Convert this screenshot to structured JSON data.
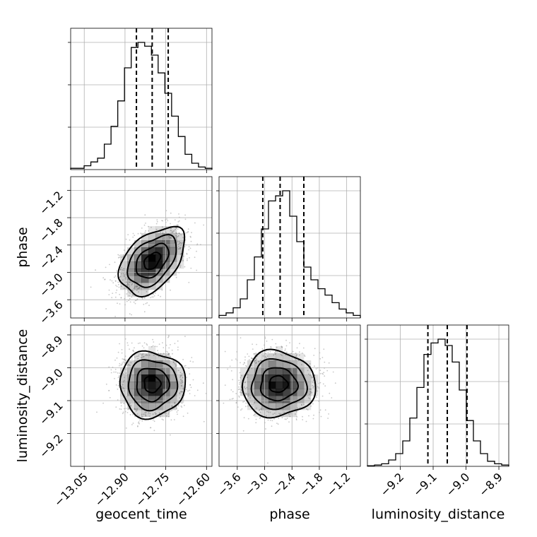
{
  "chart_data": {
    "type": "corner",
    "parameters": [
      {
        "name": "geocent_time",
        "xlabel": "geocent_time",
        "range": [
          -13.1,
          -12.58
        ],
        "ticks": [
          -13.05,
          -12.9,
          -12.75,
          -12.6
        ],
        "tick_labels": [
          "−13.05",
          "−12.90",
          "−12.75",
          "−12.60"
        ],
        "quantiles": [
          -12.858,
          -12.8,
          -12.741
        ],
        "hist_bins": [
          0.01,
          0.01,
          0.03,
          0.06,
          0.09,
          0.2,
          0.34,
          0.54,
          0.8,
          0.96,
          1.0,
          0.97,
          0.9,
          0.76,
          0.6,
          0.42,
          0.26,
          0.12,
          0.05,
          0.02,
          0.01
        ]
      },
      {
        "name": "phase",
        "xlabel": "phase",
        "ylabel": "phase",
        "range": [
          -4.0,
          -0.9
        ],
        "ticks": [
          -3.6,
          -3.0,
          -2.4,
          -1.8,
          -1.2
        ],
        "tick_labels": [
          "−3.6",
          "−3.0",
          "−2.4",
          "−1.8",
          "−1.2"
        ],
        "quantiles": [
          -3.04,
          -2.66,
          -2.14
        ],
        "hist_bins": [
          0.02,
          0.04,
          0.08,
          0.15,
          0.3,
          0.48,
          0.7,
          0.92,
          0.96,
          1.0,
          0.8,
          0.6,
          0.4,
          0.3,
          0.23,
          0.18,
          0.12,
          0.07,
          0.04,
          0.02
        ]
      },
      {
        "name": "luminosity_distance",
        "xlabel": "luminosity_distance",
        "ylabel": "luminosity_distance",
        "range": [
          -9.3,
          -8.87
        ],
        "ticks": [
          -9.2,
          -9.1,
          -9.0,
          -8.9
        ],
        "tick_labels": [
          "−9.2",
          "−9.1",
          "−9.0",
          "−8.9"
        ],
        "quantiles": [
          -9.116,
          -9.057,
          -8.997
        ],
        "hist_bins": [
          0.005,
          0.01,
          0.02,
          0.05,
          0.1,
          0.2,
          0.38,
          0.62,
          0.88,
          0.97,
          1.0,
          0.95,
          0.82,
          0.6,
          0.36,
          0.2,
          0.1,
          0.04,
          0.02,
          0.01
        ]
      }
    ],
    "pairs": [
      {
        "x": "geocent_time",
        "y": "phase",
        "center": [
          -12.8,
          -2.75
        ],
        "spread": [
          0.06,
          0.37
        ],
        "correlation": 0.45,
        "contour_levels": [
          0.5,
          1.0,
          1.5,
          2.0
        ]
      },
      {
        "x": "geocent_time",
        "y": "luminosity_distance",
        "center": [
          -12.8,
          -9.05
        ],
        "spread": [
          0.06,
          0.05
        ],
        "correlation": 0.0,
        "contour_levels": [
          0.5,
          1.0,
          1.5,
          2.0
        ]
      },
      {
        "x": "phase",
        "y": "luminosity_distance",
        "center": [
          -2.7,
          -9.05
        ],
        "spread": [
          0.4,
          0.05
        ],
        "correlation": 0.0,
        "contour_levels": [
          0.5,
          1.0,
          1.5,
          2.0
        ]
      }
    ],
    "grid": true
  },
  "colors": {
    "ink": "#000000",
    "grid": "#b0b0b0",
    "density": "#000000",
    "scatter": "#9a9a9a"
  }
}
